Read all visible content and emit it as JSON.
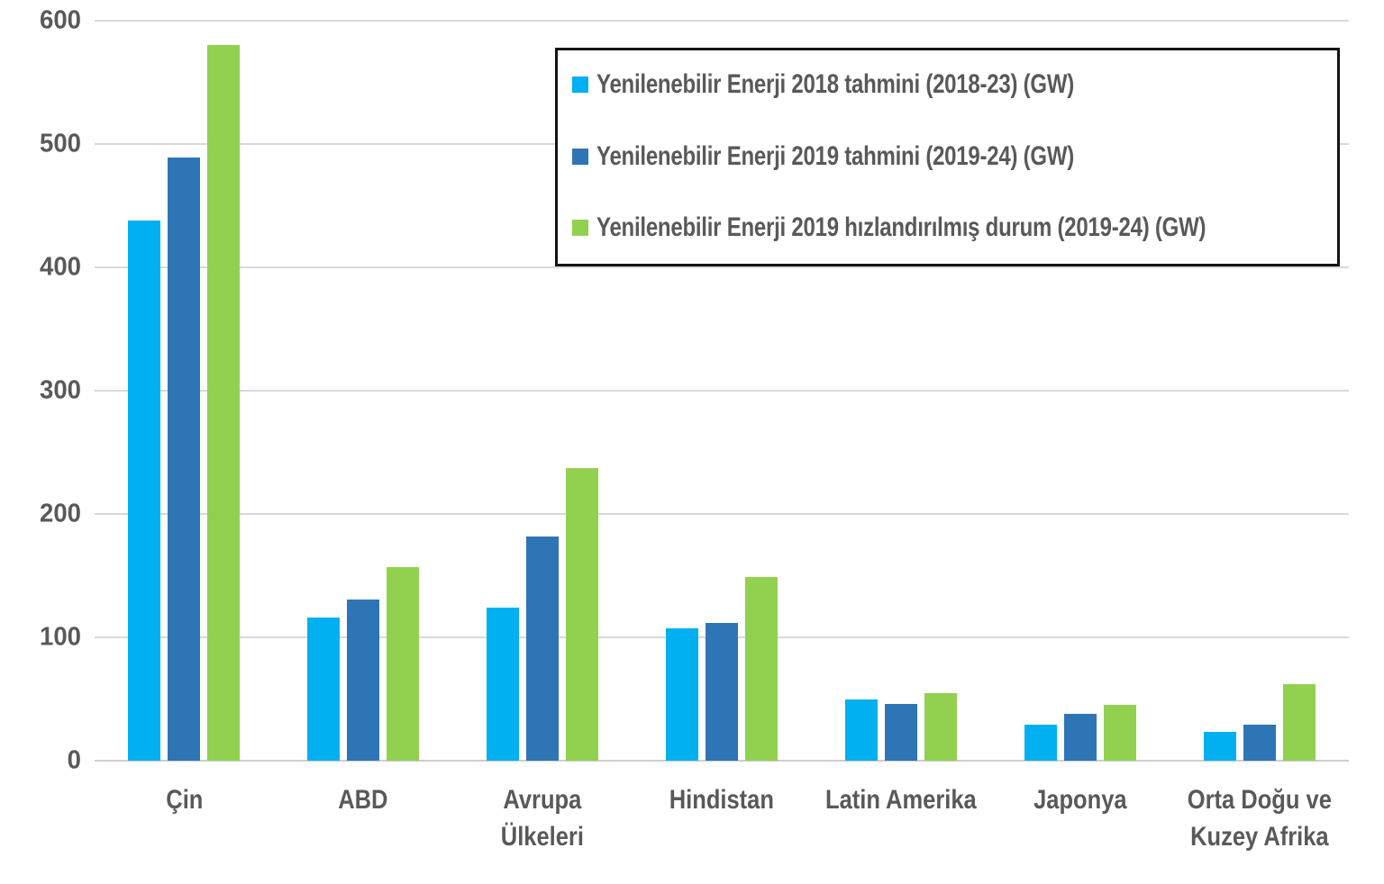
{
  "chart_data": {
    "type": "bar",
    "title": "",
    "xlabel": "",
    "ylabel": "",
    "unit": "GW",
    "ylim": [
      0,
      600
    ],
    "yticks": [
      0,
      100,
      200,
      300,
      400,
      500,
      600
    ],
    "grid": true,
    "legend_position": "top-right",
    "categories": [
      "Çin",
      "ABD",
      "Avrupa Ülkeleri",
      "Hindistan",
      "Latin Amerika",
      "Japonya",
      "Orta Doğu ve Kuzey Afrika"
    ],
    "category_lines": [
      [
        "Çin"
      ],
      [
        "ABD"
      ],
      [
        "Avrupa",
        "Ülkeleri"
      ],
      [
        "Hindistan"
      ],
      [
        "Latin Amerika"
      ],
      [
        "Japonya"
      ],
      [
        "Orta Doğu ve",
        "Kuzey Afrika"
      ]
    ],
    "series": [
      {
        "name": "Yenilenebilir Enerji 2018 tahmini (2018-23) (GW)",
        "color": "#00B0F0",
        "values": [
          438,
          116,
          124,
          107,
          50,
          29,
          23
        ]
      },
      {
        "name": "Yenilenebilir Enerji 2019 tahmini (2019-24) (GW)",
        "color": "#2E75B6",
        "values": [
          489,
          131,
          182,
          112,
          46,
          38,
          29
        ]
      },
      {
        "name": "Yenilenebilir Enerji 2019 hızlandırılmış durum (2019-24) (GW)",
        "color": "#92D050",
        "values": [
          580,
          157,
          237,
          149,
          55,
          45,
          62
        ]
      }
    ],
    "colors": {
      "axis_text": "#595959",
      "gridline": "#d9d9d9",
      "legend_border": "#141414",
      "background": "#ffffff"
    }
  }
}
